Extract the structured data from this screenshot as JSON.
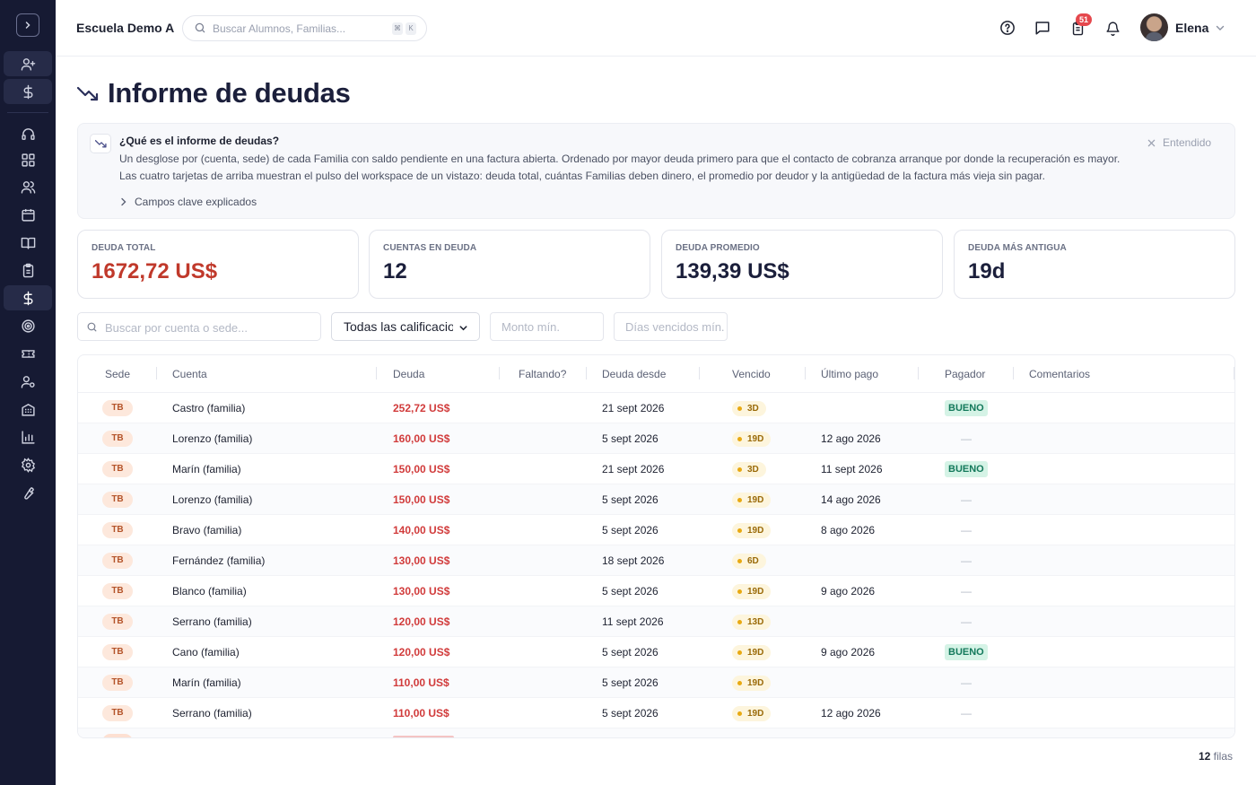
{
  "app": {
    "school_name": "Escuela Demo A"
  },
  "search": {
    "placeholder": "Buscar Alumnos, Familias...",
    "kbd_1": "⌘",
    "kbd_2": "K"
  },
  "header": {
    "notifications_count": "51",
    "user_name": "Elena"
  },
  "page": {
    "title": "Informe de deudas"
  },
  "banner": {
    "title": "¿Qué es el informe de deudas?",
    "text": "Un desglose por (cuenta, sede) de cada Familia con saldo pendiente en una factura abierta. Ordenado por mayor deuda primero para que el contacto de cobranza arranque por donde la recuperación es mayor. Las cuatro tarjetas de arriba muestran el pulso del workspace de un vistazo: deuda total, cuántas Familias deben dinero, el promedio por deudor y la antigüedad de la factura más vieja sin pagar.",
    "fields_link": "Campos clave explicados",
    "dismiss": "Entendido"
  },
  "kpis": [
    {
      "label": "DEUDA TOTAL",
      "value": "1672,72 US$"
    },
    {
      "label": "CUENTAS EN DEUDA",
      "value": "12"
    },
    {
      "label": "DEUDA PROMEDIO",
      "value": "139,39 US$"
    },
    {
      "label": "DEUDA MÁS ANTIGUA",
      "value": "19d"
    }
  ],
  "filters": {
    "search_placeholder": "Buscar por cuenta o sede...",
    "rating_select": "Todas las calificaciones",
    "min_amount_placeholder": "Monto mín.",
    "days_overdue_placeholder": "Días vencidos mín."
  },
  "table": {
    "columns": [
      "Sede",
      "Cuenta",
      "Deuda",
      "Faltando?",
      "Deuda desde",
      "Vencido",
      "Último pago",
      "Pagador",
      "Comentarios"
    ],
    "rows": [
      {
        "sede": "TB",
        "cuenta": "Castro (familia)",
        "deuda": "252,72 US$",
        "desde": "21 sept 2026",
        "vencido": "3D",
        "ultimo_pago": "",
        "pagador": "BUENO"
      },
      {
        "sede": "TB",
        "cuenta": "Lorenzo (familia)",
        "deuda": "160,00 US$",
        "desde": "5 sept 2026",
        "vencido": "19D",
        "ultimo_pago": "12 ago 2026",
        "pagador": "—"
      },
      {
        "sede": "TB",
        "cuenta": "Marín (familia)",
        "deuda": "150,00 US$",
        "desde": "21 sept 2026",
        "vencido": "3D",
        "ultimo_pago": "11 sept 2026",
        "pagador": "BUENO"
      },
      {
        "sede": "TB",
        "cuenta": "Lorenzo (familia)",
        "deuda": "150,00 US$",
        "desde": "5 sept 2026",
        "vencido": "19D",
        "ultimo_pago": "14 ago 2026",
        "pagador": "—"
      },
      {
        "sede": "TB",
        "cuenta": "Bravo (familia)",
        "deuda": "140,00 US$",
        "desde": "5 sept 2026",
        "vencido": "19D",
        "ultimo_pago": "8 ago 2026",
        "pagador": "—"
      },
      {
        "sede": "TB",
        "cuenta": "Fernández (familia)",
        "deuda": "130,00 US$",
        "desde": "18 sept 2026",
        "vencido": "6D",
        "ultimo_pago": "",
        "pagador": "—"
      },
      {
        "sede": "TB",
        "cuenta": "Blanco (familia)",
        "deuda": "130,00 US$",
        "desde": "5 sept 2026",
        "vencido": "19D",
        "ultimo_pago": "9 ago 2026",
        "pagador": "—"
      },
      {
        "sede": "TB",
        "cuenta": "Serrano (familia)",
        "deuda": "120,00 US$",
        "desde": "11 sept 2026",
        "vencido": "13D",
        "ultimo_pago": "",
        "pagador": "—"
      },
      {
        "sede": "TB",
        "cuenta": "Cano (familia)",
        "deuda": "120,00 US$",
        "desde": "5 sept 2026",
        "vencido": "19D",
        "ultimo_pago": "9 ago 2026",
        "pagador": "BUENO"
      },
      {
        "sede": "TB",
        "cuenta": "Marín (familia)",
        "deuda": "110,00 US$",
        "desde": "5 sept 2026",
        "vencido": "19D",
        "ultimo_pago": "",
        "pagador": "—"
      },
      {
        "sede": "TB",
        "cuenta": "Serrano (familia)",
        "deuda": "110,00 US$",
        "desde": "5 sept 2026",
        "vencido": "19D",
        "ultimo_pago": "12 ago 2026",
        "pagador": "—"
      }
    ]
  },
  "footer": {
    "row_count": "12",
    "row_count_label": "filas"
  },
  "colors": {
    "sidebar": "#161a33",
    "debt_red": "#d13b3b",
    "kpi_red": "#c0392b",
    "title_navy": "#1b1f3b",
    "badge_good": "#13795b"
  }
}
